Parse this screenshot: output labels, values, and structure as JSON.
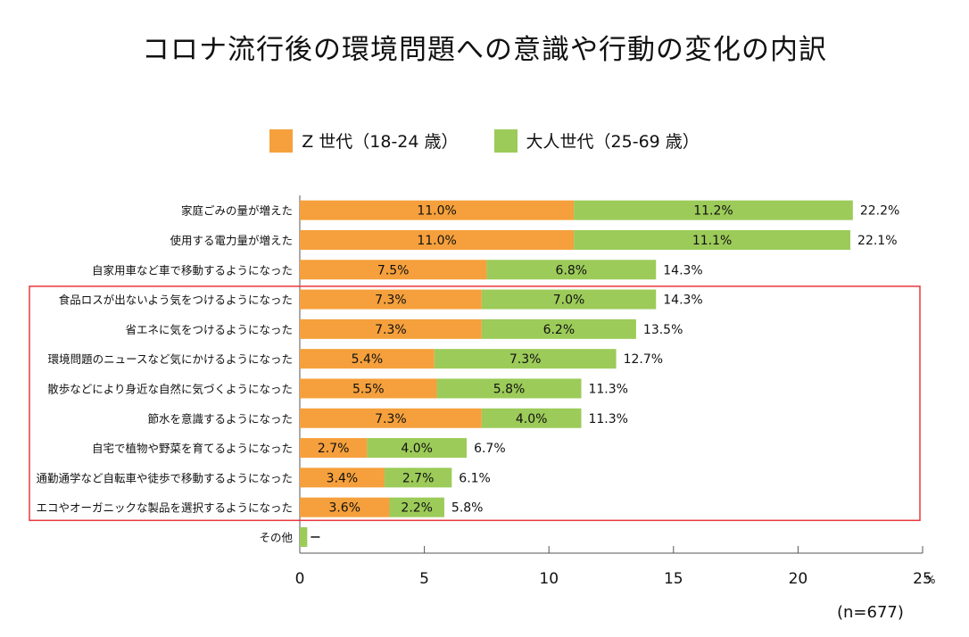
{
  "chart_data": {
    "type": "bar",
    "stacked": true,
    "orientation": "horizontal",
    "title": "コロナ流行後の環境問題への意識や行動の変化の内訳",
    "categories": [
      "家庭ごみの量が増えた",
      "使用する電力量が増えた",
      "自家用車など車で移動するようになった",
      "食品ロスが出ないよう気をつけるようになった",
      "省エネに気をつけるようになった",
      "環境問題のニュースなど気にかけるようになった",
      "散歩などにより身近な自然に気づくようになった",
      "節水を意識するようになった",
      "自宅で植物や野菜を育てるようになった",
      "通勤通学など自転車や徒歩で移動するようになった",
      "エコやオーガニックな製品を選択するようになった",
      "その他"
    ],
    "series": [
      {
        "name": "Z 世代（18-24 歳）",
        "color": "#f5a03c",
        "values": [
          11.0,
          11.0,
          7.5,
          7.3,
          7.3,
          5.4,
          5.5,
          7.3,
          2.7,
          3.4,
          3.6,
          0.0
        ],
        "labels": [
          "11.0%",
          "11.0%",
          "7.5%",
          "7.3%",
          "7.3%",
          "5.4%",
          "5.5%",
          "7.3%",
          "2.7%",
          "3.4%",
          "3.6%",
          ""
        ]
      },
      {
        "name": "大人世代（25-69 歳）",
        "color": "#9ccb59",
        "values": [
          11.2,
          11.1,
          6.8,
          7.0,
          6.2,
          7.3,
          5.8,
          4.0,
          4.0,
          2.7,
          2.2,
          0.3
        ],
        "labels": [
          "11.2%",
          "11.1%",
          "6.8%",
          "7.0%",
          "6.2%",
          "7.3%",
          "5.8%",
          "4.0%",
          "4.0%",
          "2.7%",
          "2.2%",
          ""
        ]
      }
    ],
    "totals": [
      "22.2%",
      "22.1%",
      "14.3%",
      "14.3%",
      "13.5%",
      "12.7%",
      "11.3%",
      "11.3%",
      "6.7%",
      "6.1%",
      "5.8%",
      ""
    ],
    "xlim": [
      0,
      25
    ],
    "xticks": [
      "0",
      "5",
      "10",
      "15",
      "20",
      "25"
    ],
    "x_unit": "%",
    "highlight": {
      "from_index": 3,
      "to_index": 10,
      "color": "#e8383d"
    },
    "note": "(n=677)"
  }
}
